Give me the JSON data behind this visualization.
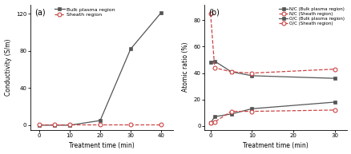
{
  "panel_a": {
    "title": "(a)",
    "xlabel": "Treatment time (min)",
    "ylabel": "Conductivity (S/m)",
    "bulk_x": [
      0,
      5,
      10,
      20,
      30,
      40
    ],
    "bulk_y": [
      0,
      0,
      0,
      5,
      82,
      121
    ],
    "sheath_x": [
      0,
      5,
      10,
      20,
      30,
      40
    ],
    "sheath_y": [
      0.5,
      0.5,
      0.5,
      0.5,
      0.5,
      0.5
    ],
    "bulk_color": "#555555",
    "sheath_color": "#cc4444",
    "bulk_label": "Bulk plasma region",
    "sheath_label": "Sheath region",
    "ylim": [
      -5,
      130
    ],
    "xlim": [
      -3,
      44
    ],
    "yticks": [
      0,
      40,
      80,
      120
    ],
    "xticks": [
      0,
      10,
      20,
      30,
      40
    ]
  },
  "panel_b": {
    "title": "(b)",
    "xlabel": "Treatment time (min)",
    "ylabel": "Atomic ratio (%)",
    "nc_bulk_x": [
      0,
      1,
      5,
      10,
      30
    ],
    "nc_bulk_y": [
      48,
      49,
      41,
      38,
      36
    ],
    "nc_sheath_x": [
      0,
      1,
      5,
      10,
      30
    ],
    "nc_sheath_y": [
      85,
      44,
      41,
      40,
      43
    ],
    "oc_bulk_x": [
      0,
      1,
      5,
      10,
      30
    ],
    "oc_bulk_y": [
      2,
      7,
      9,
      13,
      18
    ],
    "oc_sheath_x": [
      0,
      1,
      5,
      10,
      30
    ],
    "oc_sheath_y": [
      2,
      3,
      11,
      11,
      12
    ],
    "nc_bulk_color": "#555555",
    "nc_sheath_color": "#cc4444",
    "oc_bulk_color": "#555555",
    "oc_sheath_color": "#cc4444",
    "nc_bulk_label": "N/C (Bulk plasma region)",
    "nc_sheath_label": "N/C (Sheath region)",
    "oc_bulk_label": "O/C (Bulk plasma region)",
    "oc_sheath_label": "O/C (Sheath region)",
    "ylim": [
      -3,
      92
    ],
    "xlim": [
      -1.5,
      33
    ],
    "yticks": [
      0,
      20,
      40,
      60,
      80
    ],
    "xticks": [
      0,
      10,
      20,
      30
    ]
  }
}
